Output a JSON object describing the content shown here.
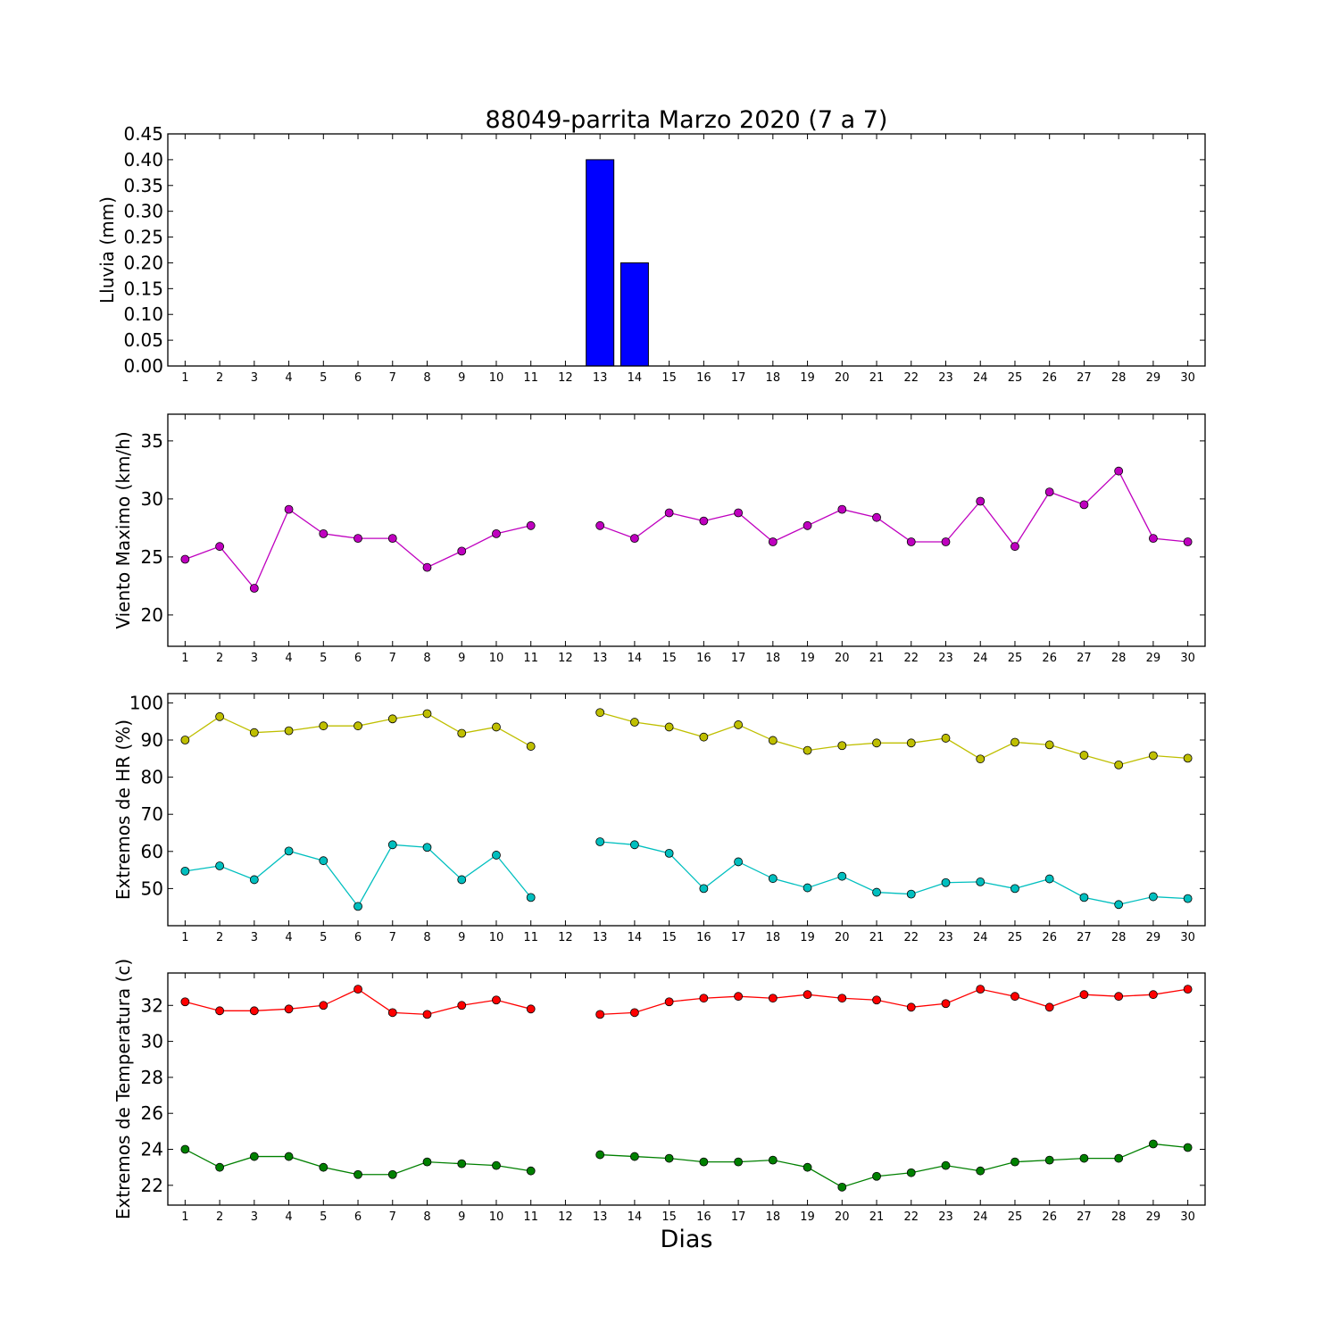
{
  "title": "88049-parrita Marzo 2020  (7 a 7)",
  "xlabel": "Dias",
  "chart_data": [
    {
      "type": "bar",
      "ylabel": "Lluvia (mm)",
      "ylim": [
        0,
        0.45
      ],
      "yticks": [
        "0.00",
        "0.05",
        "0.10",
        "0.15",
        "0.20",
        "0.25",
        "0.30",
        "0.35",
        "0.40",
        "0.45"
      ],
      "xticks": [
        1,
        2,
        3,
        4,
        5,
        6,
        7,
        8,
        9,
        10,
        11,
        12,
        13,
        14,
        15,
        16,
        17,
        18,
        19,
        20,
        21,
        22,
        23,
        24,
        25,
        26,
        27,
        28,
        29,
        30
      ],
      "x": [
        1,
        2,
        3,
        4,
        5,
        6,
        7,
        8,
        9,
        10,
        11,
        12,
        13,
        14,
        15,
        16,
        17,
        18,
        19,
        20,
        21,
        22,
        23,
        24,
        25,
        26,
        27,
        28,
        29,
        30
      ],
      "series": [
        {
          "color": "#0000ff",
          "values": [
            0,
            0,
            0,
            0,
            0,
            0,
            0,
            0,
            0,
            0,
            0,
            0,
            0.4,
            0.2,
            0,
            0,
            0,
            0,
            0,
            0,
            0,
            0,
            0,
            0,
            0,
            0,
            0,
            0,
            0,
            0
          ]
        }
      ]
    },
    {
      "type": "line",
      "ylabel": "Viento Maximo (km/h)",
      "ylim": [
        17.3,
        37.3
      ],
      "yticks": [
        "20",
        "25",
        "30",
        "35"
      ],
      "xticks": [
        1,
        2,
        3,
        4,
        5,
        6,
        7,
        8,
        9,
        10,
        11,
        12,
        13,
        14,
        15,
        16,
        17,
        18,
        19,
        20,
        21,
        22,
        23,
        24,
        25,
        26,
        27,
        28,
        29,
        30
      ],
      "x": [
        1,
        2,
        3,
        4,
        5,
        6,
        7,
        8,
        9,
        10,
        11,
        12,
        13,
        14,
        15,
        16,
        17,
        18,
        19,
        20,
        21,
        22,
        23,
        24,
        25,
        26,
        27,
        28,
        29,
        30
      ],
      "series": [
        {
          "color": "#bf00bf",
          "values": [
            24.8,
            25.9,
            22.3,
            29.1,
            27.0,
            26.6,
            26.6,
            24.1,
            25.5,
            27.0,
            27.7,
            null,
            27.7,
            26.6,
            28.8,
            28.1,
            28.8,
            26.3,
            27.7,
            29.1,
            28.4,
            26.3,
            26.3,
            29.8,
            25.9,
            30.6,
            29.5,
            32.4,
            26.6,
            26.3
          ]
        }
      ]
    },
    {
      "type": "line",
      "ylabel": "Extremos de HR (%)",
      "ylim": [
        40,
        102.5
      ],
      "yticks": [
        "50",
        "60",
        "70",
        "80",
        "90",
        "100"
      ],
      "xticks": [
        1,
        2,
        3,
        4,
        5,
        6,
        7,
        8,
        9,
        10,
        11,
        12,
        13,
        14,
        15,
        16,
        17,
        18,
        19,
        20,
        21,
        22,
        23,
        24,
        25,
        26,
        27,
        28,
        29,
        30
      ],
      "x": [
        1,
        2,
        3,
        4,
        5,
        6,
        7,
        8,
        9,
        10,
        11,
        12,
        13,
        14,
        15,
        16,
        17,
        18,
        19,
        20,
        21,
        22,
        23,
        24,
        25,
        26,
        27,
        28,
        29,
        30
      ],
      "series": [
        {
          "color": "#bfbf00",
          "values": [
            90.0,
            96.3,
            92.0,
            92.5,
            93.8,
            93.8,
            95.7,
            97.1,
            91.8,
            93.5,
            88.3,
            null,
            97.4,
            94.8,
            93.5,
            90.8,
            94.1,
            89.9,
            87.2,
            88.5,
            89.2,
            89.2,
            90.5,
            84.9,
            89.4,
            88.7,
            85.9,
            83.3,
            85.8,
            85.1
          ]
        },
        {
          "color": "#00bfbf",
          "values": [
            54.7,
            56.1,
            52.4,
            60.1,
            57.5,
            45.2,
            61.8,
            61.1,
            52.4,
            59.0,
            47.6,
            null,
            62.6,
            61.8,
            59.5,
            50.0,
            57.2,
            52.7,
            50.2,
            53.3,
            49.0,
            48.5,
            51.6,
            51.8,
            50.0,
            52.6,
            47.6,
            45.7,
            47.8,
            47.3
          ]
        }
      ]
    },
    {
      "type": "line",
      "ylabel": "Extremos de Temperatura (c)",
      "ylim": [
        20.9,
        33.8
      ],
      "yticks": [
        "22",
        "24",
        "26",
        "28",
        "30",
        "32"
      ],
      "xticks": [
        1,
        2,
        3,
        4,
        5,
        6,
        7,
        8,
        9,
        10,
        11,
        12,
        13,
        14,
        15,
        16,
        17,
        18,
        19,
        20,
        21,
        22,
        23,
        24,
        25,
        26,
        27,
        28,
        29,
        30
      ],
      "x": [
        1,
        2,
        3,
        4,
        5,
        6,
        7,
        8,
        9,
        10,
        11,
        12,
        13,
        14,
        15,
        16,
        17,
        18,
        19,
        20,
        21,
        22,
        23,
        24,
        25,
        26,
        27,
        28,
        29,
        30
      ],
      "series": [
        {
          "color": "#ff0000",
          "values": [
            32.2,
            31.7,
            31.7,
            31.8,
            32.0,
            32.9,
            31.6,
            31.5,
            32.0,
            32.3,
            31.8,
            null,
            31.5,
            31.6,
            32.2,
            32.4,
            32.5,
            32.4,
            32.6,
            32.4,
            32.3,
            31.9,
            32.1,
            32.9,
            32.5,
            31.9,
            32.6,
            32.5,
            32.6,
            32.9
          ]
        },
        {
          "color": "#008000",
          "values": [
            24.0,
            23.0,
            23.6,
            23.6,
            23.0,
            22.6,
            22.6,
            23.3,
            23.2,
            23.1,
            22.8,
            null,
            23.7,
            23.6,
            23.5,
            23.3,
            23.3,
            23.4,
            23.0,
            21.9,
            22.5,
            22.7,
            23.1,
            22.8,
            23.3,
            23.4,
            23.5,
            23.5,
            24.3,
            24.1
          ]
        }
      ]
    }
  ]
}
